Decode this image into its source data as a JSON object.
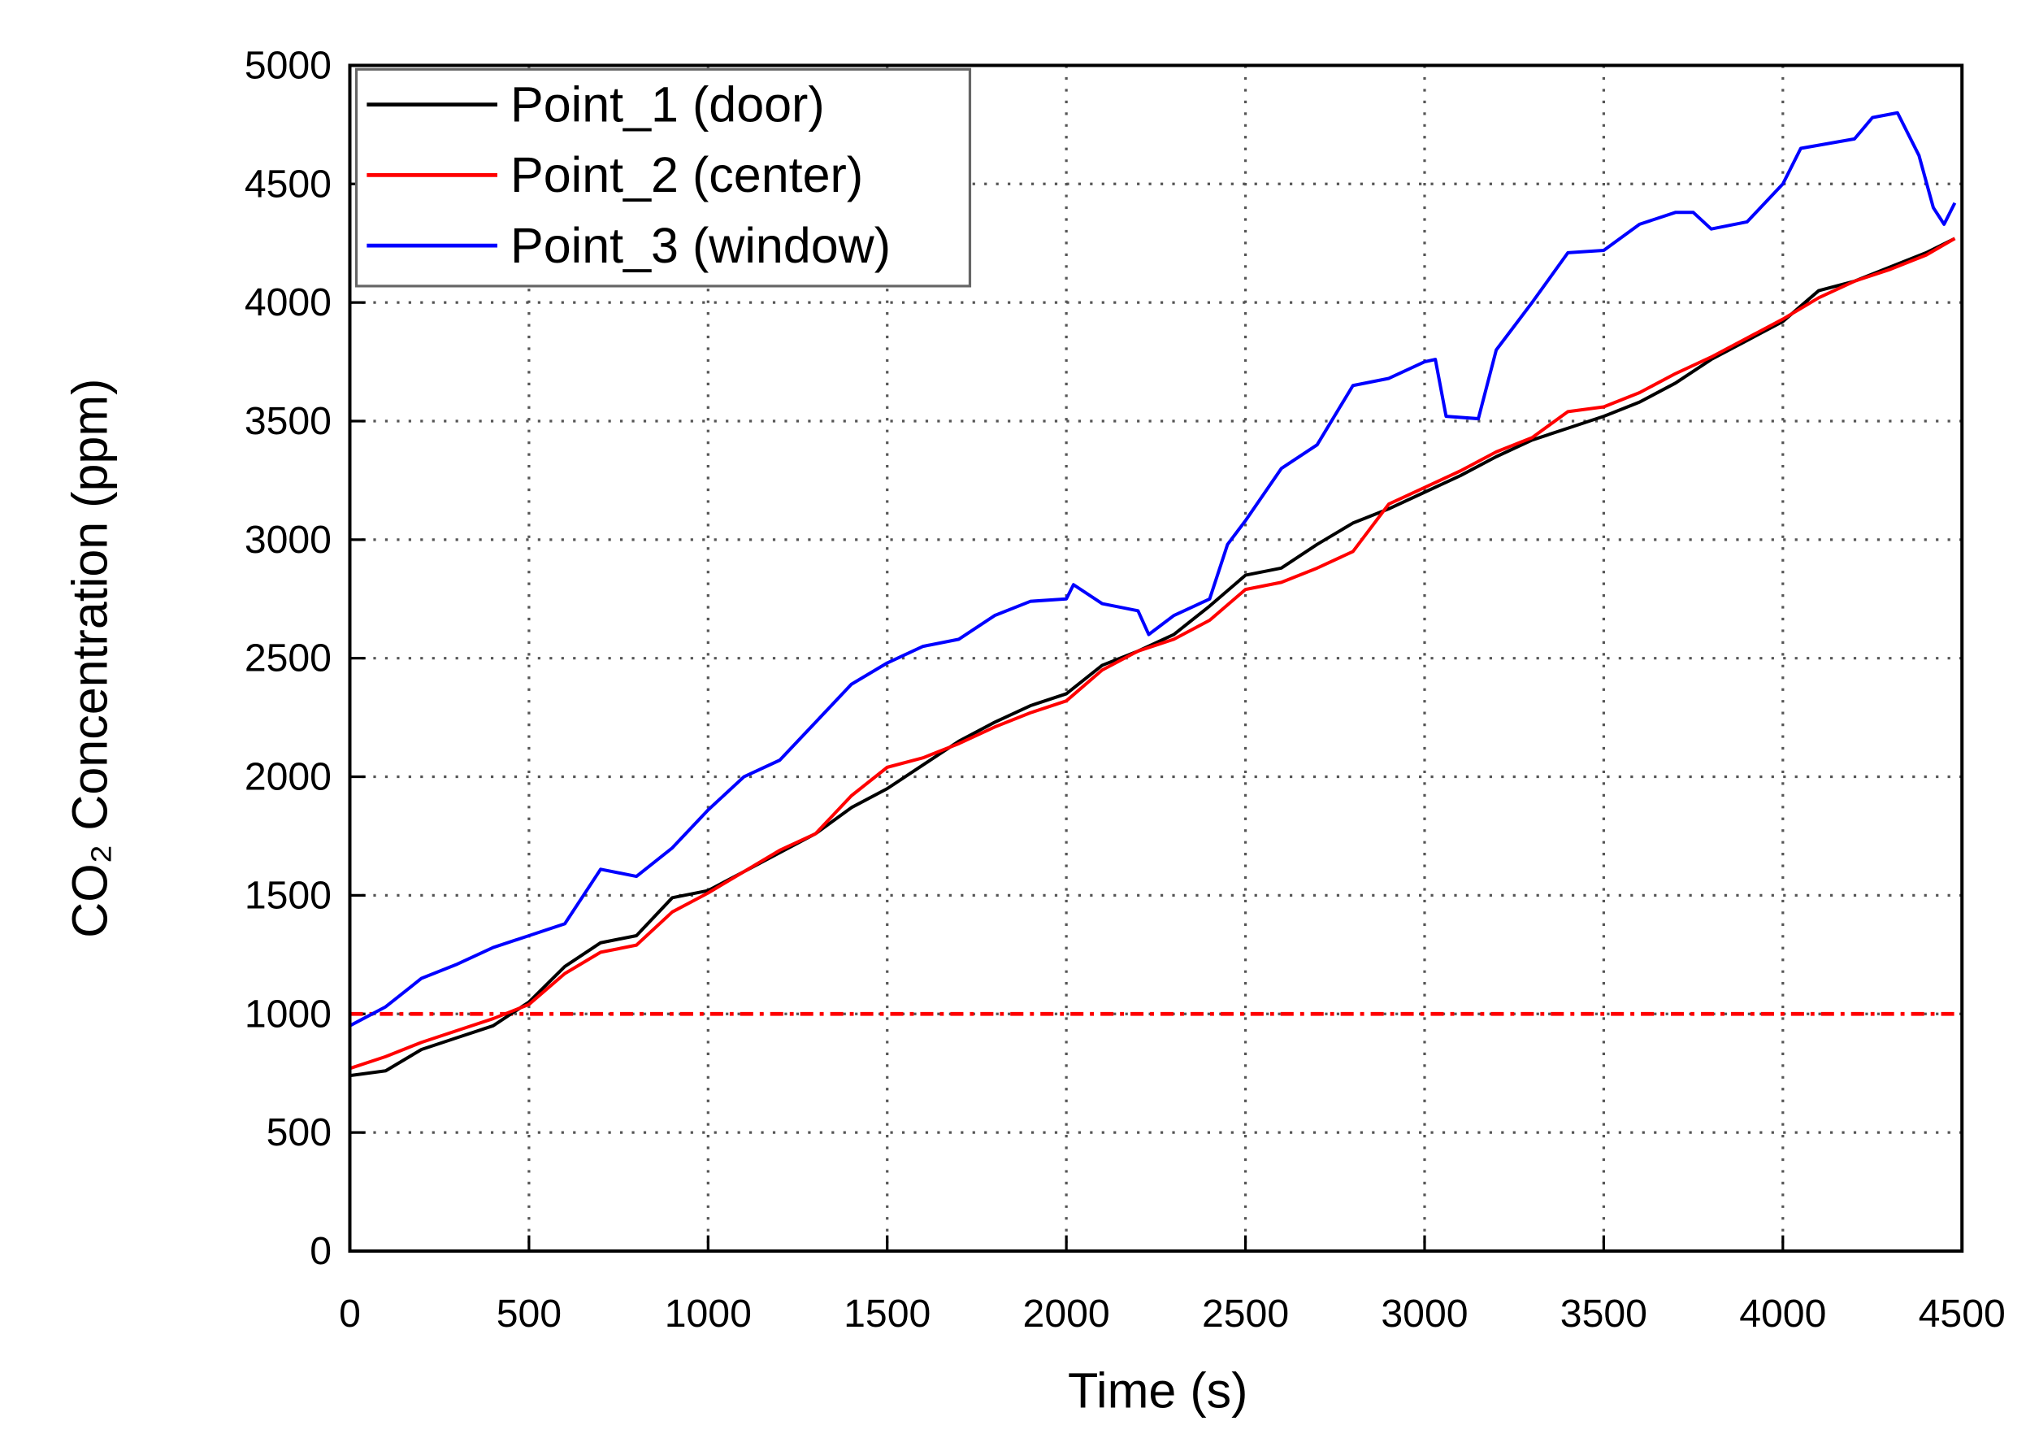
{
  "chart_data": {
    "type": "line",
    "xlabel": "Time (s)",
    "ylabel": "CO₂ Concentration (ppm)",
    "xlim": [
      0,
      4500
    ],
    "ylim": [
      0,
      5000
    ],
    "xticks": [
      0,
      500,
      1000,
      1500,
      2000,
      2500,
      3000,
      3500,
      4000,
      4500
    ],
    "yticks": [
      0,
      500,
      1000,
      1500,
      2000,
      2500,
      3000,
      3500,
      4000,
      4500,
      5000
    ],
    "grid": true,
    "legend": "upper-left",
    "reference_line": {
      "value": 1000,
      "color": "#ff0000"
    },
    "series": [
      {
        "name": "Point_1 (door)",
        "color": "#000000",
        "x": [
          0,
          100,
          200,
          300,
          400,
          500,
          600,
          700,
          800,
          900,
          1000,
          1100,
          1200,
          1300,
          1400,
          1500,
          1600,
          1700,
          1800,
          1900,
          2000,
          2100,
          2200,
          2300,
          2400,
          2500,
          2600,
          2700,
          2800,
          2900,
          3000,
          3100,
          3200,
          3300,
          3400,
          3500,
          3600,
          3700,
          3800,
          3900,
          4000,
          4100,
          4200,
          4300,
          4400,
          4480
        ],
        "values": [
          740,
          760,
          850,
          900,
          950,
          1050,
          1200,
          1300,
          1330,
          1490,
          1520,
          1600,
          1680,
          1760,
          1870,
          1950,
          2050,
          2150,
          2230,
          2300,
          2350,
          2470,
          2530,
          2600,
          2720,
          2850,
          2880,
          2980,
          3070,
          3130,
          3200,
          3270,
          3350,
          3420,
          3470,
          3520,
          3580,
          3660,
          3760,
          3840,
          3920,
          4050,
          4090,
          4150,
          4210,
          4270
        ]
      },
      {
        "name": "Point_2 (center)",
        "color": "#ff0000",
        "x": [
          0,
          100,
          200,
          300,
          400,
          500,
          600,
          700,
          800,
          900,
          1000,
          1100,
          1200,
          1300,
          1400,
          1500,
          1600,
          1700,
          1800,
          1900,
          2000,
          2100,
          2200,
          2300,
          2400,
          2500,
          2600,
          2700,
          2800,
          2900,
          3000,
          3100,
          3200,
          3300,
          3400,
          3500,
          3600,
          3700,
          3800,
          3900,
          4000,
          4100,
          4200,
          4300,
          4400,
          4480
        ],
        "values": [
          770,
          820,
          880,
          930,
          980,
          1040,
          1170,
          1260,
          1290,
          1430,
          1510,
          1600,
          1690,
          1760,
          1920,
          2040,
          2080,
          2140,
          2210,
          2270,
          2320,
          2450,
          2530,
          2580,
          2660,
          2790,
          2820,
          2880,
          2950,
          3150,
          3220,
          3290,
          3370,
          3430,
          3540,
          3560,
          3620,
          3700,
          3770,
          3850,
          3930,
          4020,
          4090,
          4140,
          4200,
          4270
        ]
      },
      {
        "name": "Point_3 (window)",
        "color": "#0000ff",
        "x": [
          0,
          100,
          200,
          300,
          400,
          500,
          600,
          700,
          800,
          900,
          1000,
          1100,
          1200,
          1300,
          1400,
          1500,
          1600,
          1700,
          1800,
          1900,
          2000,
          2020,
          2100,
          2200,
          2230,
          2300,
          2400,
          2450,
          2500,
          2600,
          2700,
          2800,
          2900,
          3000,
          3030,
          3060,
          3150,
          3200,
          3300,
          3400,
          3500,
          3600,
          3700,
          3750,
          3800,
          3900,
          4000,
          4050,
          4200,
          4250,
          4320,
          4380,
          4420,
          4450,
          4480
        ],
        "values": [
          950,
          1030,
          1150,
          1210,
          1280,
          1330,
          1380,
          1610,
          1580,
          1700,
          1860,
          2000,
          2070,
          2230,
          2390,
          2480,
          2550,
          2580,
          2680,
          2740,
          2750,
          2810,
          2730,
          2700,
          2600,
          2680,
          2750,
          2980,
          3080,
          3300,
          3400,
          3650,
          3680,
          3750,
          3760,
          3520,
          3510,
          3800,
          4000,
          4210,
          4220,
          4330,
          4380,
          4380,
          4310,
          4340,
          4500,
          4650,
          4690,
          4780,
          4800,
          4620,
          4400,
          4330,
          4420
        ]
      }
    ]
  }
}
